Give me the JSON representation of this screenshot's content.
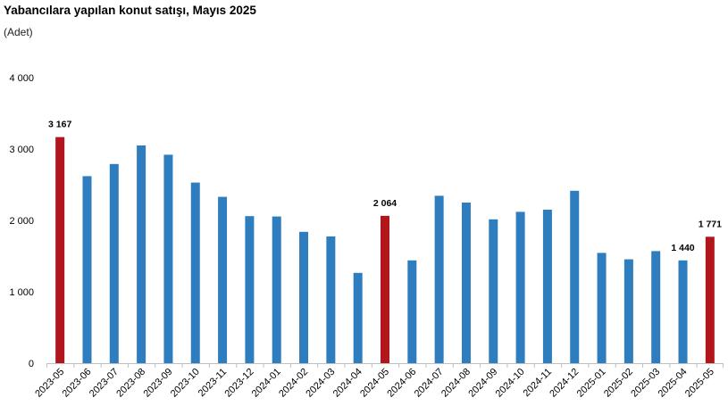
{
  "chart_data": {
    "type": "bar",
    "title": "Yabancılara yapılan konut satışı, Mayıs 2025",
    "subtitle": "(Adet)",
    "categories": [
      "2023-05",
      "2023-06",
      "2023-07",
      "2023-08",
      "2023-09",
      "2023-10",
      "2023-11",
      "2023-12",
      "2024-01",
      "2024-02",
      "2024-03",
      "2024-04",
      "2024-05",
      "2024-06",
      "2024-07",
      "2024-08",
      "2024-09",
      "2024-10",
      "2024-11",
      "2024-12",
      "2025-01",
      "2025-02",
      "2025-03",
      "2025-04",
      "2025-05"
    ],
    "values": [
      3167,
      2620,
      2790,
      3050,
      2920,
      2530,
      2330,
      2060,
      2055,
      1840,
      1775,
      1265,
      2064,
      1440,
      2345,
      2250,
      2015,
      2120,
      2150,
      2415,
      1545,
      1455,
      1570,
      1440,
      1771
    ],
    "highlight": [
      true,
      false,
      false,
      false,
      false,
      false,
      false,
      false,
      false,
      false,
      false,
      false,
      true,
      false,
      false,
      false,
      false,
      false,
      false,
      false,
      false,
      false,
      false,
      false,
      true
    ],
    "data_labels": [
      {
        "category": "2023-05",
        "text": "3 167"
      },
      {
        "category": "2024-05",
        "text": "2 064"
      },
      {
        "category": "2025-04",
        "text": "1 440"
      },
      {
        "category": "2025-05",
        "text": "1 771"
      }
    ],
    "yticks": [
      {
        "value": 0,
        "label": "0"
      },
      {
        "value": 1000,
        "label": "1 000"
      },
      {
        "value": 2000,
        "label": "2 000"
      },
      {
        "value": 3000,
        "label": "3 000"
      },
      {
        "value": 4000,
        "label": "4 000"
      }
    ],
    "ylim": [
      0,
      4000
    ],
    "grid": false,
    "colors": {
      "bar": "#2e7ebf",
      "highlight": "#b0161c",
      "axis": "#bfbfbf"
    }
  }
}
